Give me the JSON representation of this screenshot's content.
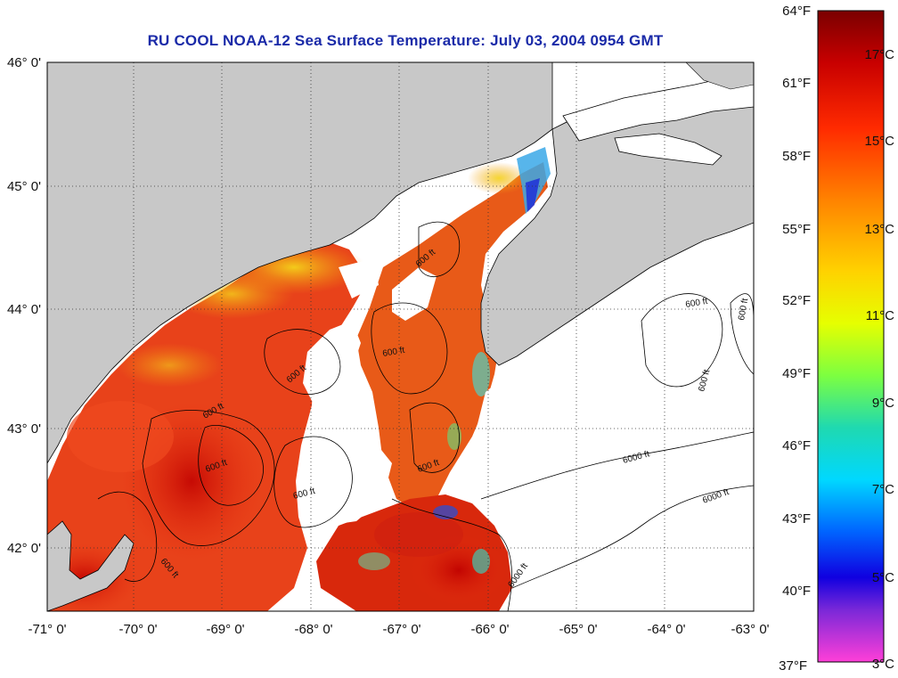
{
  "title": "RU COOL  NOAA-12  Sea Surface Temperature:  July 03, 2004 0954 GMT",
  "lon_labels": [
    "-71° 0'",
    "-70° 0'",
    "-69° 0'",
    "-68° 0'",
    "-67° 0'",
    "-66° 0'",
    "-65° 0'",
    "-64° 0'",
    "-63° 0'"
  ],
  "lat_labels": [
    "46° 0'",
    "45° 0'",
    "44° 0'",
    "43° 0'",
    "42° 0'"
  ],
  "colorbar": {
    "fahrenheit": [
      "64°F",
      "61°F",
      "58°F",
      "55°F",
      "52°F",
      "49°F",
      "46°F",
      "43°F",
      "40°F",
      "37°F"
    ],
    "celsius": [
      "17°C",
      "15°C",
      "13°C",
      "11°C",
      "9°C",
      "7°C",
      "5°C",
      "3°C"
    ]
  },
  "contour_labels": [
    "600 ft",
    "600 ft",
    "600 ft",
    "600 ft",
    "600 ft",
    "600 ft",
    "600 ft",
    "600 ft",
    "600 ft",
    "600 ft",
    "600 ft",
    "6000 ft",
    "6000 ft",
    "6000 ft"
  ],
  "colors": {
    "land": "#c8c8c8",
    "cloud_masked": "#ffffff",
    "title": "#1a2aa8",
    "warm": "#e23a10",
    "hot": "#a40000",
    "cool": "#f2d51c"
  }
}
